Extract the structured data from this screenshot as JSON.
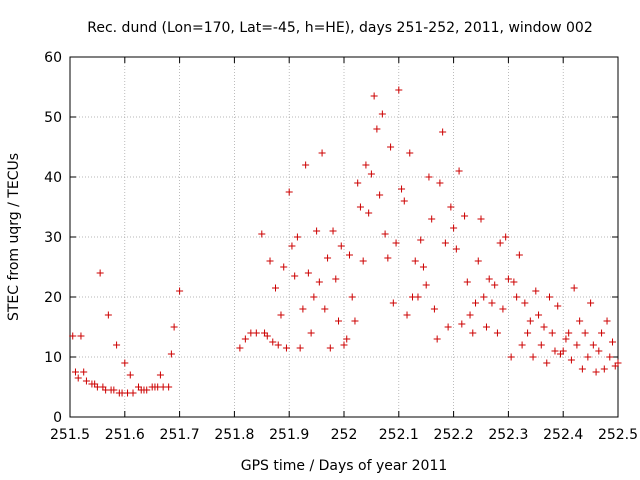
{
  "chart_data": {
    "type": "scatter",
    "title": "Rec. dund (Lon=170, Lat=-45, h=HE), days 251-252, 2011, window 002",
    "xlabel": "GPS time / Days of year 2011",
    "ylabel": "STEC from uqrg / TECUs",
    "xlim": [
      251.5,
      252.5
    ],
    "ylim": [
      0,
      60
    ],
    "xticks": [
      "251.5",
      "251.6",
      "251.7",
      "251.8",
      "251.9",
      "252",
      "252.1",
      "252.2",
      "252.3",
      "252.4",
      "252.5"
    ],
    "yticks": [
      "0",
      "10",
      "20",
      "30",
      "40",
      "50",
      "60"
    ],
    "grid": true,
    "marker": "+",
    "color": "#cc0000",
    "points": [
      [
        251.505,
        13.5
      ],
      [
        251.51,
        7.5
      ],
      [
        251.515,
        6.5
      ],
      [
        251.52,
        13.5
      ],
      [
        251.525,
        7.5
      ],
      [
        251.53,
        6
      ],
      [
        251.54,
        5.5
      ],
      [
        251.545,
        5.5
      ],
      [
        251.55,
        5
      ],
      [
        251.555,
        24
      ],
      [
        251.56,
        5
      ],
      [
        251.565,
        4.5
      ],
      [
        251.57,
        17
      ],
      [
        251.575,
        4.5
      ],
      [
        251.58,
        4.5
      ],
      [
        251.585,
        12
      ],
      [
        251.59,
        4
      ],
      [
        251.595,
        4
      ],
      [
        251.6,
        9
      ],
      [
        251.605,
        4
      ],
      [
        251.61,
        7
      ],
      [
        251.615,
        4
      ],
      [
        251.625,
        5
      ],
      [
        251.63,
        4.5
      ],
      [
        251.635,
        4.5
      ],
      [
        251.64,
        4.5
      ],
      [
        251.65,
        5
      ],
      [
        251.655,
        5
      ],
      [
        251.66,
        5
      ],
      [
        251.665,
        7
      ],
      [
        251.67,
        5
      ],
      [
        251.68,
        5
      ],
      [
        251.685,
        10.5
      ],
      [
        251.69,
        15
      ],
      [
        251.7,
        21
      ],
      [
        251.81,
        11.5
      ],
      [
        251.82,
        13
      ],
      [
        251.83,
        14
      ],
      [
        251.84,
        14
      ],
      [
        251.85,
        30.5
      ],
      [
        251.855,
        14
      ],
      [
        251.86,
        13.5
      ],
      [
        251.865,
        26
      ],
      [
        251.87,
        12.5
      ],
      [
        251.875,
        21.5
      ],
      [
        251.88,
        12
      ],
      [
        251.885,
        17
      ],
      [
        251.89,
        25
      ],
      [
        251.895,
        11.5
      ],
      [
        251.9,
        37.5
      ],
      [
        251.905,
        28.5
      ],
      [
        251.91,
        23.5
      ],
      [
        251.915,
        30
      ],
      [
        251.92,
        11.5
      ],
      [
        251.925,
        18
      ],
      [
        251.93,
        42
      ],
      [
        251.935,
        24
      ],
      [
        251.94,
        14
      ],
      [
        251.945,
        20
      ],
      [
        251.95,
        31
      ],
      [
        251.955,
        22.5
      ],
      [
        251.96,
        44
      ],
      [
        251.965,
        18
      ],
      [
        251.97,
        26.5
      ],
      [
        251.975,
        11.5
      ],
      [
        251.98,
        31
      ],
      [
        251.985,
        23
      ],
      [
        251.99,
        16
      ],
      [
        251.995,
        28.5
      ],
      [
        252.0,
        12
      ],
      [
        252.005,
        13
      ],
      [
        252.01,
        27
      ],
      [
        252.015,
        20
      ],
      [
        252.02,
        16
      ],
      [
        252.025,
        39
      ],
      [
        252.03,
        35
      ],
      [
        252.035,
        26
      ],
      [
        252.04,
        42
      ],
      [
        252.045,
        34
      ],
      [
        252.05,
        40.5
      ],
      [
        252.055,
        53.5
      ],
      [
        252.06,
        48
      ],
      [
        252.065,
        37
      ],
      [
        252.07,
        50.5
      ],
      [
        252.075,
        30.5
      ],
      [
        252.08,
        26.5
      ],
      [
        252.085,
        45
      ],
      [
        252.09,
        19
      ],
      [
        252.095,
        29
      ],
      [
        252.1,
        54.5
      ],
      [
        252.105,
        38
      ],
      [
        252.11,
        36
      ],
      [
        252.115,
        17
      ],
      [
        252.12,
        44
      ],
      [
        252.125,
        20
      ],
      [
        252.13,
        26
      ],
      [
        252.135,
        20
      ],
      [
        252.14,
        29.5
      ],
      [
        252.145,
        25
      ],
      [
        252.15,
        22
      ],
      [
        252.155,
        40
      ],
      [
        252.16,
        33
      ],
      [
        252.165,
        18
      ],
      [
        252.17,
        13
      ],
      [
        252.175,
        39
      ],
      [
        252.18,
        47.5
      ],
      [
        252.185,
        29
      ],
      [
        252.19,
        15
      ],
      [
        252.195,
        35
      ],
      [
        252.2,
        31.5
      ],
      [
        252.205,
        28
      ],
      [
        252.21,
        41
      ],
      [
        252.215,
        15.5
      ],
      [
        252.22,
        33.5
      ],
      [
        252.225,
        22.5
      ],
      [
        252.23,
        17
      ],
      [
        252.235,
        14
      ],
      [
        252.24,
        19
      ],
      [
        252.245,
        26
      ],
      [
        252.25,
        33
      ],
      [
        252.255,
        20
      ],
      [
        252.26,
        15
      ],
      [
        252.265,
        23
      ],
      [
        252.27,
        19
      ],
      [
        252.275,
        22
      ],
      [
        252.28,
        14
      ],
      [
        252.285,
        29
      ],
      [
        252.29,
        18
      ],
      [
        252.295,
        30
      ],
      [
        252.3,
        23
      ],
      [
        252.305,
        10
      ],
      [
        252.31,
        22.5
      ],
      [
        252.315,
        20
      ],
      [
        252.32,
        27
      ],
      [
        252.325,
        12
      ],
      [
        252.33,
        19
      ],
      [
        252.335,
        14
      ],
      [
        252.34,
        16
      ],
      [
        252.345,
        10
      ],
      [
        252.35,
        21
      ],
      [
        252.355,
        17
      ],
      [
        252.36,
        12
      ],
      [
        252.365,
        15
      ],
      [
        252.37,
        9
      ],
      [
        252.375,
        20
      ],
      [
        252.38,
        14
      ],
      [
        252.385,
        11
      ],
      [
        252.39,
        18.5
      ],
      [
        252.395,
        10.5
      ],
      [
        252.4,
        11
      ],
      [
        252.405,
        13
      ],
      [
        252.41,
        14
      ],
      [
        252.415,
        9.5
      ],
      [
        252.42,
        21.5
      ],
      [
        252.425,
        12
      ],
      [
        252.43,
        16
      ],
      [
        252.435,
        8
      ],
      [
        252.44,
        14
      ],
      [
        252.445,
        10
      ],
      [
        252.45,
        19
      ],
      [
        252.455,
        12
      ],
      [
        252.46,
        7.5
      ],
      [
        252.465,
        11
      ],
      [
        252.47,
        14
      ],
      [
        252.475,
        8
      ],
      [
        252.48,
        16
      ],
      [
        252.485,
        10
      ],
      [
        252.49,
        12.5
      ],
      [
        252.495,
        8.5
      ],
      [
        252.5,
        9
      ]
    ]
  }
}
